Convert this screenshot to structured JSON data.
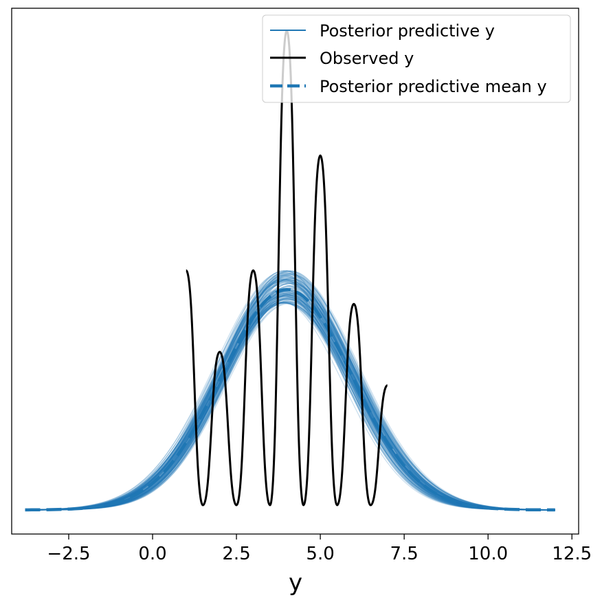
{
  "chart_data": {
    "type": "line",
    "title": "",
    "xlabel": "y",
    "ylabel": "",
    "xlim": [
      -4.2,
      12.7
    ],
    "ylim": [
      0,
      1
    ],
    "x_ticks": [
      -2.5,
      0.0,
      2.5,
      5.0,
      7.5,
      10.0,
      12.5
    ],
    "x_tick_labels": [
      "−2.5",
      "0.0",
      "2.5",
      "5.0",
      "7.5",
      "10.0",
      "12.5"
    ],
    "y_ticks": [],
    "grid": false,
    "legend_position": "top-right",
    "legend": [
      "Posterior predictive y",
      "Observed y",
      "Posterior predictive mean y"
    ],
    "series": [
      {
        "name": "Posterior predictive y",
        "style": "many thin translucent lines",
        "color": "#1f77b4",
        "x_range": [
          -3.8,
          12.0
        ],
        "center": 4.0,
        "std_dev": 1.95,
        "peak_density_range": [
          0.43,
          0.5
        ]
      },
      {
        "name": "Observed y",
        "style": "solid",
        "color": "#000000",
        "x": [
          1,
          1.5,
          2,
          2.5,
          3,
          3.5,
          4,
          4.5,
          5,
          5.5,
          6,
          6.5,
          7
        ],
        "y": [
          0.5,
          0.01,
          0.33,
          0.01,
          0.5,
          0.01,
          1.0,
          0.01,
          0.74,
          0.01,
          0.43,
          0.01,
          0.26
        ]
      },
      {
        "name": "Posterior predictive mean y",
        "style": "dashed",
        "color": "#1f77b4",
        "x_range": [
          -3.8,
          12.0
        ],
        "center": 4.0,
        "std_dev": 1.95,
        "peak_density": 0.46
      }
    ]
  }
}
